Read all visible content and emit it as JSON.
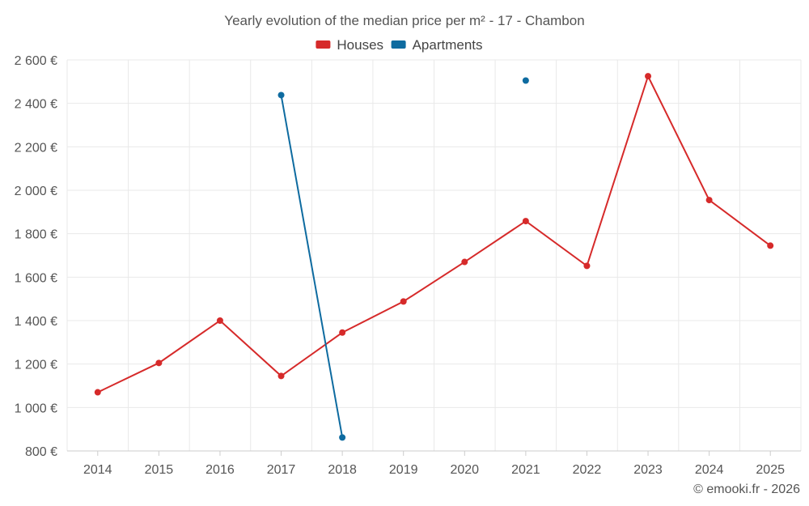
{
  "chart_data": {
    "type": "line",
    "title": "Yearly evolution of the median price per m² - 17 - Chambon",
    "categories": [
      "2014",
      "2015",
      "2016",
      "2017",
      "2018",
      "2019",
      "2020",
      "2021",
      "2022",
      "2023",
      "2024",
      "2025"
    ],
    "ylim": [
      800,
      2600
    ],
    "yticks": [
      800,
      1000,
      1200,
      1400,
      1600,
      1800,
      2000,
      2200,
      2400,
      2600
    ],
    "ytick_labels": [
      "800 €",
      "1 000 €",
      "1 200 €",
      "1 400 €",
      "1 600 €",
      "1 800 €",
      "2 000 €",
      "2 200 €",
      "2 400 €",
      "2 600 €"
    ],
    "xlabel": "",
    "ylabel": "",
    "grid": true,
    "legend_position": "top-center",
    "series": [
      {
        "name": "Houses",
        "color": "#d62a2a",
        "values": [
          1070,
          1205,
          1400,
          1145,
          1345,
          1488,
          1670,
          1858,
          1652,
          2525,
          1955,
          1745
        ]
      },
      {
        "name": "Apartments",
        "color": "#0e6ba0",
        "values": [
          null,
          null,
          null,
          2438,
          862,
          null,
          null,
          2505,
          null,
          null,
          null,
          null
        ]
      }
    ]
  },
  "copyright": "© emooki.fr - 2026"
}
